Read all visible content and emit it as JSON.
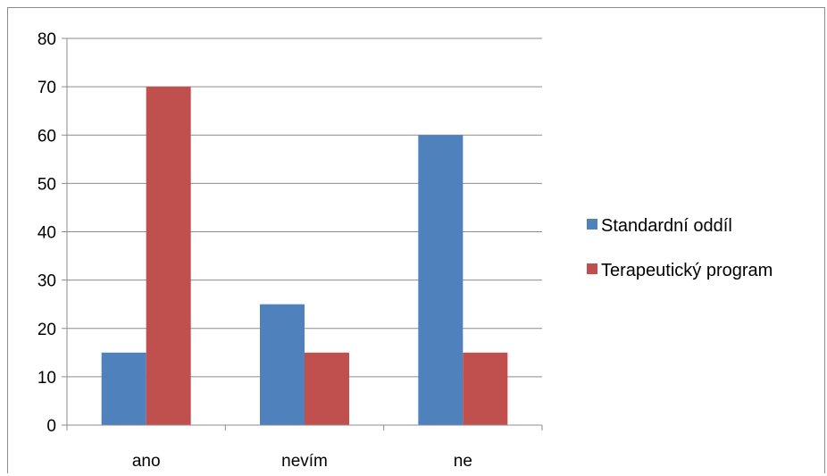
{
  "chart_data": {
    "type": "bar",
    "title": "",
    "xlabel": "",
    "ylabel": "",
    "categories": [
      "ano",
      "nevím",
      "ne"
    ],
    "series": [
      {
        "name": "Standardní oddíl",
        "values": [
          15,
          25,
          60
        ],
        "color": "#4f81bd"
      },
      {
        "name": "Terapeutický program",
        "values": [
          70,
          15,
          15
        ],
        "color": "#c0504d"
      }
    ],
    "ylim": [
      0,
      80
    ],
    "yticks": [
      0,
      10,
      20,
      30,
      40,
      50,
      60,
      70,
      80
    ],
    "grid": true,
    "legend_position": "right"
  }
}
